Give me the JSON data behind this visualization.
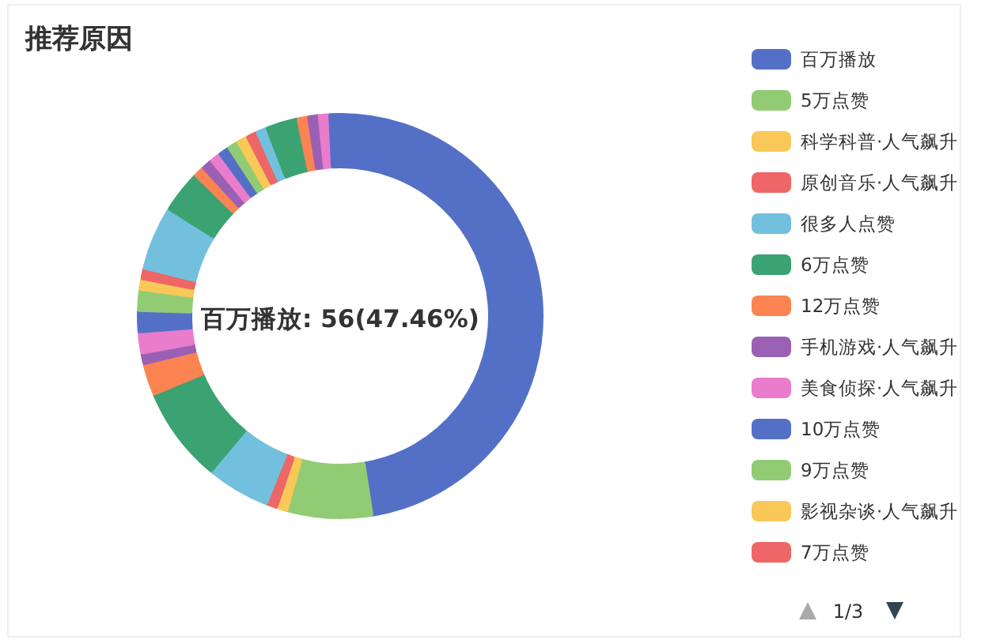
{
  "chart_data": {
    "type": "donut",
    "title": "推荐原因",
    "categories": [
      "百万播放",
      "5万点赞",
      "科学科普·人气飙升",
      "原创音乐·人气飙升",
      "很多人点赞",
      "6万点赞",
      "12万点赞",
      "手机游戏·人气飙升",
      "美食侦探·人气飙升",
      "10万点赞",
      "9万点赞",
      "影视杂谈·人气飙升",
      "7万点赞",
      null,
      null,
      null,
      null,
      null,
      null,
      null,
      null,
      null,
      null,
      null,
      null,
      null,
      null,
      null
    ],
    "values": [
      47.46,
      6.78,
      0.85,
      0.85,
      5.08,
      7.63,
      2.54,
      0.85,
      1.69,
      1.69,
      1.69,
      0.85,
      0.85,
      5.08,
      3.39,
      0.85,
      0.85,
      0.85,
      0.85,
      0.85,
      0.85,
      0.85,
      0.85,
      2.54,
      0.85,
      0.85,
      0.84,
      0.84
    ],
    "colors": [
      "#5470c6",
      "#91cc75",
      "#fac858",
      "#ee6666",
      "#73c0de",
      "#3ba272",
      "#fc8452",
      "#9a60b4",
      "#ea7ccc",
      "#5470c6",
      "#91cc75",
      "#fac858",
      "#ee6666",
      "#73c0de",
      "#3ba272",
      "#fc8452",
      "#9a60b4",
      "#ea7ccc",
      "#5470c6",
      "#91cc75",
      "#fac858",
      "#ee6666",
      "#73c0de",
      "#3ba272",
      "#fc8452",
      "#9a60b4",
      "#ea7ccc",
      "#5470c6"
    ],
    "legend": "right",
    "annotations": [
      "百万播放: 56(47.46%)",
      "1/3"
    ]
  }
}
